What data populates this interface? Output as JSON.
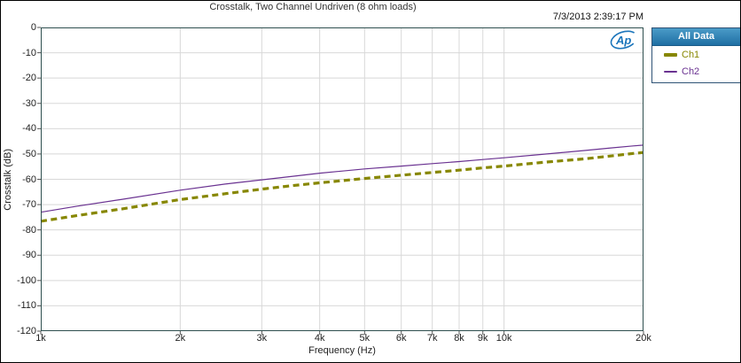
{
  "window": {
    "timestamp": "7/3/2013 2:39:17 PM"
  },
  "logo": {
    "text": "Ap",
    "color": "#1b75bb"
  },
  "legend": {
    "header": "All Data",
    "items": [
      {
        "label": "Ch1",
        "color": "#878700",
        "style": "thick-dashed"
      },
      {
        "label": "Ch2",
        "color": "#6a3291",
        "style": "thin-solid"
      }
    ]
  },
  "colors": {
    "frame": "#2f4f4f",
    "grid": "#d8d8d8",
    "tick": "#555555",
    "legend_header": "#2e7fb4",
    "title_text": "#333333"
  },
  "chart_data": {
    "type": "line",
    "title": "Crosstalk, Two Channel Undriven (8 ohm loads)",
    "xlabel": "Frequency (Hz)",
    "ylabel": "Crosstalk (dB)",
    "x_scale": "log",
    "xlim": [
      1000,
      20000
    ],
    "ylim": [
      -120,
      0
    ],
    "grid": true,
    "legend_position": "top-right-panel",
    "x_ticks": [
      {
        "value": 1000,
        "label": "1k"
      },
      {
        "value": 2000,
        "label": "2k"
      },
      {
        "value": 3000,
        "label": "3k"
      },
      {
        "value": 4000,
        "label": "4k"
      },
      {
        "value": 5000,
        "label": "5k"
      },
      {
        "value": 6000,
        "label": "6k"
      },
      {
        "value": 7000,
        "label": "7k"
      },
      {
        "value": 8000,
        "label": "8k"
      },
      {
        "value": 9000,
        "label": "9k"
      },
      {
        "value": 10000,
        "label": "10k"
      },
      {
        "value": 20000,
        "label": "20k"
      }
    ],
    "y_ticks": [
      {
        "value": 0,
        "label": "0"
      },
      {
        "value": -10,
        "label": "-10"
      },
      {
        "value": -20,
        "label": "-20"
      },
      {
        "value": -30,
        "label": "-30"
      },
      {
        "value": -40,
        "label": "-40"
      },
      {
        "value": -50,
        "label": "-50"
      },
      {
        "value": -60,
        "label": "-60"
      },
      {
        "value": -70,
        "label": "-70"
      },
      {
        "value": -80,
        "label": "-80"
      },
      {
        "value": -90,
        "label": "-90"
      },
      {
        "value": -100,
        "label": "-100"
      },
      {
        "value": -110,
        "label": "-110"
      },
      {
        "value": -120,
        "label": "-120"
      }
    ],
    "series": [
      {
        "name": "Ch1",
        "color": "#878700",
        "line": "dashed",
        "width": 3.2,
        "points": [
          [
            1000,
            -76.6
          ],
          [
            1200,
            -74.3
          ],
          [
            1500,
            -71.7
          ],
          [
            2000,
            -68.0
          ],
          [
            2500,
            -65.7
          ],
          [
            3000,
            -63.9
          ],
          [
            3500,
            -62.5
          ],
          [
            4000,
            -61.4
          ],
          [
            5000,
            -59.7
          ],
          [
            6000,
            -58.4
          ],
          [
            7000,
            -57.3
          ],
          [
            8000,
            -56.4
          ],
          [
            9000,
            -55.5
          ],
          [
            10000,
            -54.8
          ],
          [
            12000,
            -53.4
          ],
          [
            15000,
            -51.9
          ],
          [
            17000,
            -50.8
          ],
          [
            19000,
            -49.8
          ],
          [
            20000,
            -49.4
          ]
        ]
      },
      {
        "name": "Ch2",
        "color": "#6a3291",
        "line": "solid",
        "width": 1.2,
        "points": [
          [
            1000,
            -73.0
          ],
          [
            1200,
            -70.6
          ],
          [
            1500,
            -67.9
          ],
          [
            2000,
            -64.3
          ],
          [
            2500,
            -61.9
          ],
          [
            3000,
            -60.2
          ],
          [
            3500,
            -58.8
          ],
          [
            4000,
            -57.6
          ],
          [
            5000,
            -55.9
          ],
          [
            6000,
            -54.8
          ],
          [
            7000,
            -53.8
          ],
          [
            8000,
            -53.0
          ],
          [
            9000,
            -52.2
          ],
          [
            10000,
            -51.5
          ],
          [
            12000,
            -50.2
          ],
          [
            15000,
            -48.6
          ],
          [
            17000,
            -47.6
          ],
          [
            19000,
            -46.8
          ],
          [
            20000,
            -46.5
          ]
        ]
      }
    ]
  }
}
